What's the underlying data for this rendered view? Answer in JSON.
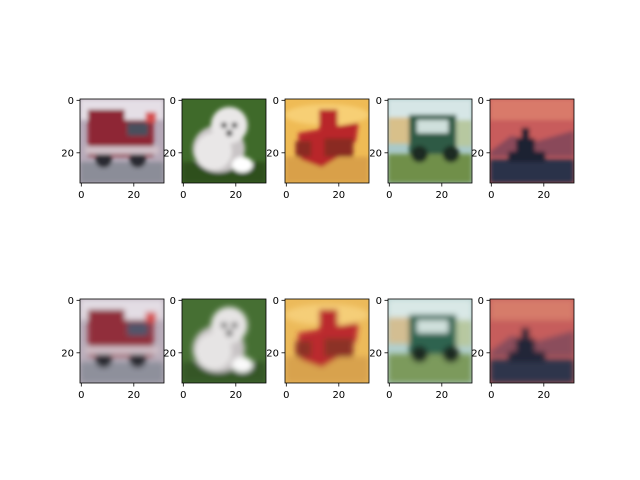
{
  "chart_data": {
    "type": "image_grid",
    "rows": 2,
    "cols": 5,
    "image_size": [
      32,
      32
    ],
    "x_ticks": [
      0,
      20
    ],
    "y_ticks": [
      0,
      20
    ],
    "rows_data": [
      {
        "images": [
          {
            "subject": "truck",
            "palette": {
              "bg": "#b6a9b8",
              "main": "#8e2836",
              "accent": "#4a4f5d",
              "ground": "#8b8d98",
              "highlight": "#e5dfe6"
            }
          },
          {
            "subject": "dog",
            "palette": {
              "bg": "#3f6a2a",
              "main": "#e9e7e7",
              "accent": "#c9c5c6",
              "ground": "#2f4f1f",
              "highlight": "#ffffff"
            }
          },
          {
            "subject": "airplane",
            "palette": {
              "bg": "#efbb55",
              "main": "#b9262a",
              "accent": "#8a2c22",
              "ground": "#d9a049",
              "highlight": "#f7cf74"
            }
          },
          {
            "subject": "truck",
            "palette": {
              "bg": "#a9c9c8",
              "main": "#2f5a44",
              "accent": "#d8c08a",
              "ground": "#6f8f48",
              "highlight": "#d6e6e6"
            }
          },
          {
            "subject": "ship",
            "palette": {
              "bg": "#c85c5c",
              "main": "#1f2233",
              "accent": "#8a4a5a",
              "ground": "#2c3348",
              "highlight": "#d97a6a"
            }
          }
        ]
      },
      {
        "images": [
          {
            "subject": "truck",
            "palette": {
              "bg": "#b9adba",
              "main": "#912d3a",
              "accent": "#51556a",
              "ground": "#8e909b",
              "highlight": "#e3dde4"
            }
          },
          {
            "subject": "dog",
            "palette": {
              "bg": "#466f33",
              "main": "#e6e4e4",
              "accent": "#c7c3c4",
              "ground": "#355625",
              "highlight": "#fafafa"
            }
          },
          {
            "subject": "airplane",
            "palette": {
              "bg": "#ecba5a",
              "main": "#bb2c2f",
              "accent": "#8c3228",
              "ground": "#d8a24e",
              "highlight": "#f5ce78"
            }
          },
          {
            "subject": "truck",
            "palette": {
              "bg": "#b1cfcd",
              "main": "#2f6450",
              "accent": "#d3be92",
              "ground": "#7c9a5b",
              "highlight": "#d9e8e6"
            }
          },
          {
            "subject": "ship",
            "palette": {
              "bg": "#c65d5c",
              "main": "#232638",
              "accent": "#8b4d5b",
              "ground": "#2f364b",
              "highlight": "#d67b6b"
            }
          }
        ]
      }
    ]
  }
}
